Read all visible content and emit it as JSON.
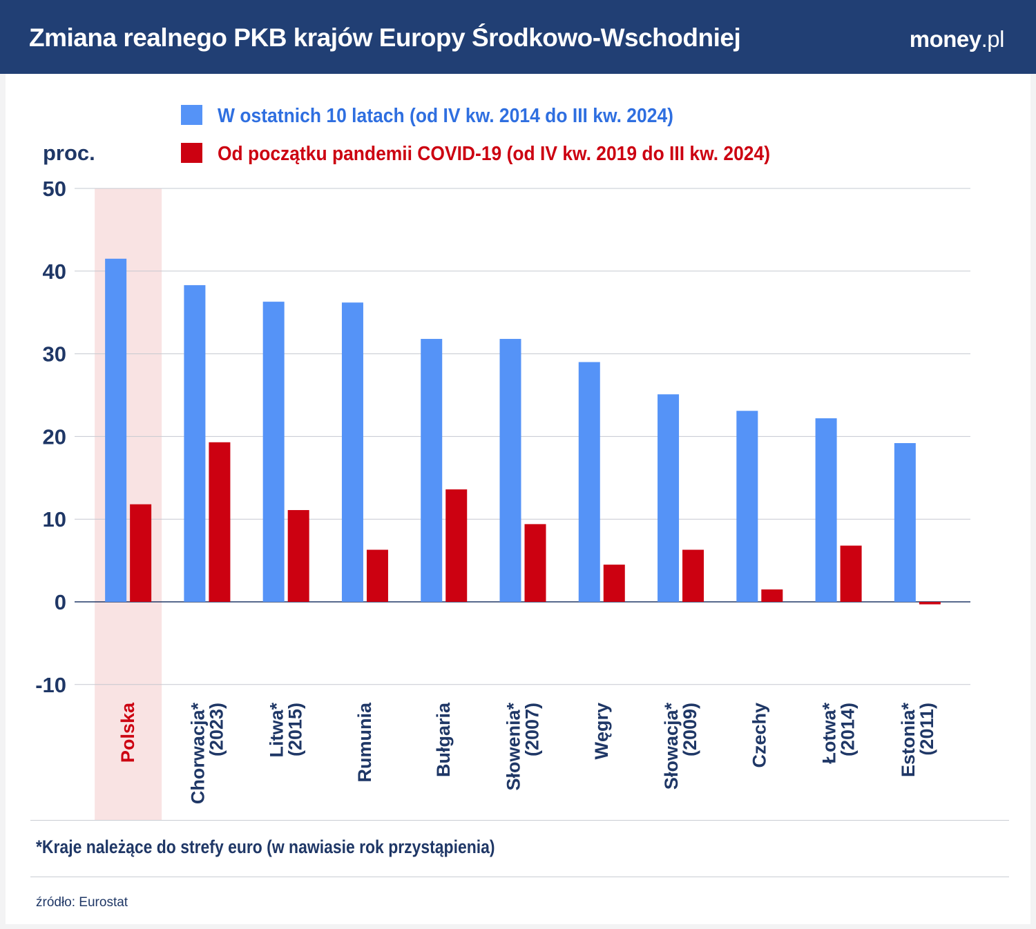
{
  "header": {
    "title": "Zmiana realnego PKB krajów Europy Środkowo-Wschodniej",
    "logo_main": "money",
    "logo_suffix": ".pl"
  },
  "colors": {
    "blue": "#5593f7",
    "red": "#cc0111",
    "highlight": "#f9e3e3",
    "navy": "#1f3766"
  },
  "chart_data": {
    "type": "bar",
    "ylabel": "proc.",
    "ylim": [
      -10,
      50
    ],
    "yticks": [
      "-10",
      "0",
      "10",
      "20",
      "30",
      "40",
      "50"
    ],
    "grid": true,
    "legend_position": "top",
    "categories": [
      [
        "Polska"
      ],
      [
        "Chorwacja*",
        "(2023)"
      ],
      [
        "Litwa*",
        "(2015)"
      ],
      [
        "Rumunia"
      ],
      [
        "Bułgaria"
      ],
      [
        "Słowenia*",
        "(2007)"
      ],
      [
        "Węgry"
      ],
      [
        "Słowacja*",
        "(2009)"
      ],
      [
        "Czechy"
      ],
      [
        "Łotwa*",
        "(2014)"
      ],
      [
        "Estonia*",
        "(2011)"
      ]
    ],
    "highlighted_category": "Polska",
    "series": [
      {
        "name": "W ostatnich 10 latach (od IV kw. 2014 do III kw. 2024)",
        "color": "#5593f7",
        "values": [
          41.5,
          38.3,
          36.3,
          36.2,
          31.8,
          31.8,
          29.0,
          25.1,
          23.1,
          22.2,
          19.2
        ]
      },
      {
        "name": "Od początku pandemii COVID-19 (od IV kw. 2019 do III kw. 2024)",
        "color": "#cc0111",
        "values": [
          11.8,
          19.3,
          11.1,
          6.3,
          13.6,
          9.4,
          4.5,
          6.3,
          1.5,
          6.8,
          -0.3
        ]
      }
    ]
  },
  "footer": {
    "note": "*Kraje należące do strefy euro (w nawiasie rok przystąpienia)",
    "source": "źródło: Eurostat"
  }
}
